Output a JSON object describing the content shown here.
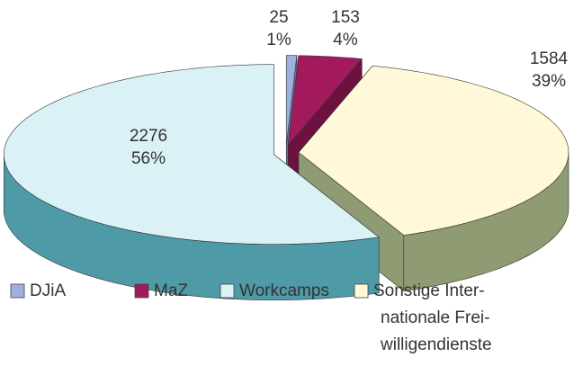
{
  "chart_data": {
    "type": "pie3d",
    "categories": [
      "DJiA",
      "MaZ",
      "Workcamps",
      [
        "Sonstige Inter-",
        "nationale Frei-",
        "willigendienste"
      ]
    ],
    "values": [
      25,
      153,
      2276,
      1584
    ],
    "percent_labels": [
      "1%",
      "4%",
      "56%",
      "39%"
    ],
    "colors": [
      "#9fb0de",
      "#a31a5c",
      "#daf1f6",
      "#fff9da"
    ],
    "side_colors": [
      "#6a78a8",
      "#6e1040",
      "#4e9aa6",
      "#8f9b72"
    ],
    "draw_order": [
      0,
      1,
      3,
      2
    ]
  }
}
